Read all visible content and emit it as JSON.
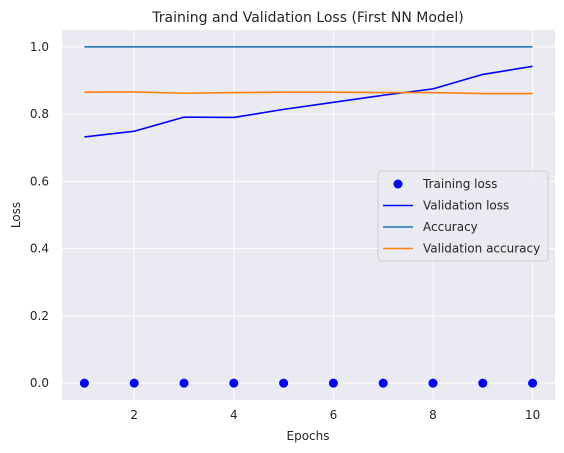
{
  "chart_data": {
    "type": "line",
    "title": "Training and Validation Loss (First NN Model)",
    "xlabel": "Epochs",
    "ylabel": "Loss",
    "xlim": [
      0.55,
      10.45
    ],
    "ylim": [
      -0.05,
      1.05
    ],
    "x_ticks": [
      2,
      4,
      6,
      8,
      10
    ],
    "y_ticks": [
      0.0,
      0.2,
      0.4,
      0.6,
      0.8,
      1.0
    ],
    "x_tick_labels": [
      "2",
      "4",
      "6",
      "8",
      "10"
    ],
    "y_tick_labels": [
      "0.0",
      "0.2",
      "0.4",
      "0.6",
      "0.8",
      "1.0"
    ],
    "grid": true,
    "legend_position": "center-right",
    "x": [
      1,
      2,
      3,
      4,
      5,
      6,
      7,
      8,
      9,
      10
    ],
    "series": [
      {
        "name": "Training loss",
        "style": "markers",
        "color": "#0000ff",
        "values": [
          0,
          0,
          0,
          0,
          0,
          0,
          0,
          0,
          0,
          0
        ]
      },
      {
        "name": "Validation loss",
        "style": "line",
        "color": "#0000ff",
        "values": [
          0.732,
          0.749,
          0.791,
          0.79,
          0.814,
          0.835,
          0.856,
          0.875,
          0.918,
          0.942
        ]
      },
      {
        "name": "Accuracy",
        "style": "line",
        "color": "#1f77b4",
        "values": [
          1.0,
          1.0,
          1.0,
          1.0,
          1.0,
          1.0,
          1.0,
          1.0,
          1.0,
          1.0
        ]
      },
      {
        "name": "Validation accuracy",
        "style": "line",
        "color": "#ff7f0e",
        "values": [
          0.865,
          0.866,
          0.862,
          0.864,
          0.865,
          0.865,
          0.864,
          0.864,
          0.861,
          0.861
        ]
      }
    ]
  },
  "colors": {
    "plot_background": "#eaeaf2",
    "grid": "#ffffff"
  }
}
